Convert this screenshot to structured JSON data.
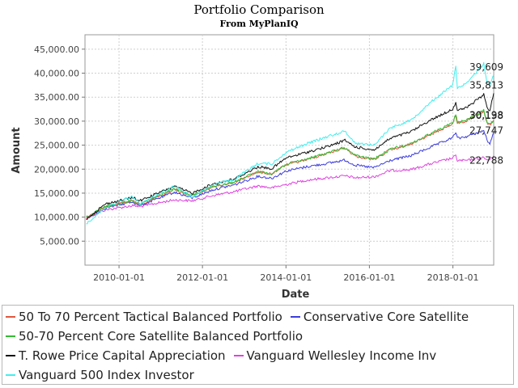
{
  "chart_data": {
    "type": "line",
    "title": "Portfolio Comparison",
    "subtitle": "From MyPlanIQ",
    "xlabel": "Date",
    "ylabel": "Amount",
    "xlim": [
      "2009-03-09",
      "2018-12-24"
    ],
    "ylim": [
      0,
      48000
    ],
    "yticks": [
      5000,
      10000,
      15000,
      20000,
      25000,
      30000,
      35000,
      40000,
      45000
    ],
    "ytick_labels": [
      "5,000.00",
      "10,000.00",
      "15,000.00",
      "20,000.00",
      "25,000.00",
      "30,000.00",
      "35,000.00",
      "40,000.00",
      "45,000.00"
    ],
    "xticks": [
      "2010-01-01",
      "2012-01-01",
      "2014-01-01",
      "2016-01-01",
      "2018-01-01"
    ],
    "xtick_labels": [
      "2010-01-01",
      "2012-01-01",
      "2014-01-01",
      "2016-01-01",
      "2018-01-01"
    ],
    "grid": true,
    "legend_position": "bottom",
    "series": [
      {
        "name": "50 To 70 Percent Tactical Balanced Portfolio",
        "color": "#e0573f",
        "end_label": "30,138",
        "points": [
          [
            "2009-03-20",
            9800
          ],
          [
            "2009-09-01",
            12100
          ],
          [
            "2010-05-01",
            13400
          ],
          [
            "2010-07-01",
            12600
          ],
          [
            "2011-04-29",
            15800
          ],
          [
            "2011-10-03",
            14400
          ],
          [
            "2012-04-01",
            16300
          ],
          [
            "2012-10-01",
            17200
          ],
          [
            "2013-05-01",
            19400
          ],
          [
            "2013-08-30",
            19000
          ],
          [
            "2014-01-01",
            20900
          ],
          [
            "2014-07-01",
            22000
          ],
          [
            "2014-12-31",
            23300
          ],
          [
            "2015-06-01",
            24400
          ],
          [
            "2015-09-01",
            22700
          ],
          [
            "2016-02-11",
            22000
          ],
          [
            "2016-07-01",
            24000
          ],
          [
            "2016-12-30",
            25200
          ],
          [
            "2017-06-01",
            27000
          ],
          [
            "2017-12-29",
            29400
          ],
          [
            "2018-01-26",
            31200
          ],
          [
            "2018-02-09",
            29600
          ],
          [
            "2018-05-01",
            30000
          ],
          [
            "2018-09-28",
            32000
          ],
          [
            "2018-10-26",
            29500
          ],
          [
            "2018-11-20",
            29200
          ],
          [
            "2018-12-24",
            30138
          ]
        ]
      },
      {
        "name": "Conservative Core Satellite",
        "color": "#3c3cdc",
        "end_label": "27,747",
        "points": [
          [
            "2009-03-20",
            9700
          ],
          [
            "2009-09-01",
            11900
          ],
          [
            "2010-05-01",
            13200
          ],
          [
            "2010-07-01",
            12400
          ],
          [
            "2011-04-29",
            15200
          ],
          [
            "2011-10-03",
            14000
          ],
          [
            "2012-04-01",
            15700
          ],
          [
            "2012-10-01",
            16700
          ],
          [
            "2013-05-01",
            18500
          ],
          [
            "2013-08-30",
            18100
          ],
          [
            "2014-01-01",
            19600
          ],
          [
            "2014-07-01",
            20500
          ],
          [
            "2014-12-31",
            21200
          ],
          [
            "2015-06-01",
            21900
          ],
          [
            "2015-09-01",
            20800
          ],
          [
            "2016-02-11",
            20300
          ],
          [
            "2016-07-01",
            21800
          ],
          [
            "2016-12-30",
            22800
          ],
          [
            "2017-06-01",
            24400
          ],
          [
            "2017-12-29",
            26500
          ],
          [
            "2018-01-26",
            27800
          ],
          [
            "2018-02-09",
            26400
          ],
          [
            "2018-05-01",
            26800
          ],
          [
            "2018-09-28",
            28000
          ],
          [
            "2018-10-26",
            26200
          ],
          [
            "2018-11-20",
            25000
          ],
          [
            "2018-12-24",
            27747
          ]
        ]
      },
      {
        "name": "50-70 Percent Core Satellite Balanced Portfolio",
        "color": "#33bb33",
        "end_label": "30,198",
        "points": [
          [
            "2009-03-20",
            9900
          ],
          [
            "2009-09-01",
            12200
          ],
          [
            "2010-05-01",
            13500
          ],
          [
            "2010-07-01",
            12700
          ],
          [
            "2011-04-29",
            15900
          ],
          [
            "2011-10-03",
            14500
          ],
          [
            "2012-04-01",
            16400
          ],
          [
            "2012-10-01",
            17300
          ],
          [
            "2013-05-01",
            19500
          ],
          [
            "2013-08-30",
            19100
          ],
          [
            "2014-01-01",
            21000
          ],
          [
            "2014-07-01",
            22100
          ],
          [
            "2014-12-31",
            23400
          ],
          [
            "2015-06-01",
            24500
          ],
          [
            "2015-09-01",
            22800
          ],
          [
            "2016-02-11",
            22100
          ],
          [
            "2016-07-01",
            24100
          ],
          [
            "2016-12-30",
            25300
          ],
          [
            "2017-06-01",
            27200
          ],
          [
            "2017-12-29",
            29600
          ],
          [
            "2018-01-26",
            31400
          ],
          [
            "2018-02-09",
            29800
          ],
          [
            "2018-05-01",
            30200
          ],
          [
            "2018-09-28",
            32200
          ],
          [
            "2018-10-26",
            29700
          ],
          [
            "2018-11-20",
            29300
          ],
          [
            "2018-12-24",
            30198
          ]
        ]
      },
      {
        "name": "T. Rowe Price Capital Appreciation",
        "color": "#111111",
        "end_label": "35,813",
        "points": [
          [
            "2009-03-20",
            9600
          ],
          [
            "2009-09-01",
            12700
          ],
          [
            "2010-05-01",
            14100
          ],
          [
            "2010-07-01",
            13400
          ],
          [
            "2011-04-29",
            16400
          ],
          [
            "2011-10-03",
            15000
          ],
          [
            "2012-04-01",
            16900
          ],
          [
            "2012-10-01",
            17900
          ],
          [
            "2013-05-01",
            20500
          ],
          [
            "2013-08-30",
            20100
          ],
          [
            "2014-01-01",
            22300
          ],
          [
            "2014-07-01",
            23500
          ],
          [
            "2014-12-31",
            24700
          ],
          [
            "2015-06-01",
            26000
          ],
          [
            "2015-09-01",
            24600
          ],
          [
            "2016-02-11",
            24000
          ],
          [
            "2016-07-01",
            26400
          ],
          [
            "2016-12-30",
            27800
          ],
          [
            "2017-06-01",
            30000
          ],
          [
            "2017-12-29",
            32500
          ],
          [
            "2018-01-26",
            34000
          ],
          [
            "2018-02-09",
            32200
          ],
          [
            "2018-05-01",
            32800
          ],
          [
            "2018-09-28",
            35500
          ],
          [
            "2018-10-26",
            33000
          ],
          [
            "2018-11-20",
            32200
          ],
          [
            "2018-12-24",
            35813
          ]
        ]
      },
      {
        "name": "Vanguard Wellesley Income Inv",
        "color": "#dd44dd",
        "end_label": "22,788",
        "points": [
          [
            "2009-03-20",
            9800
          ],
          [
            "2009-09-01",
            11500
          ],
          [
            "2010-05-01",
            12400
          ],
          [
            "2010-07-01",
            12200
          ],
          [
            "2011-04-29",
            13600
          ],
          [
            "2011-10-03",
            13400
          ],
          [
            "2012-04-01",
            14500
          ],
          [
            "2012-10-01",
            15300
          ],
          [
            "2013-05-01",
            16500
          ],
          [
            "2013-08-30",
            16100
          ],
          [
            "2014-01-01",
            16800
          ],
          [
            "2014-07-01",
            17700
          ],
          [
            "2014-12-31",
            18200
          ],
          [
            "2015-06-01",
            18600
          ],
          [
            "2015-09-01",
            18200
          ],
          [
            "2016-02-11",
            18400
          ],
          [
            "2016-07-01",
            19700
          ],
          [
            "2016-12-30",
            19900
          ],
          [
            "2017-06-01",
            21000
          ],
          [
            "2017-12-29",
            22300
          ],
          [
            "2018-01-26",
            22800
          ],
          [
            "2018-02-09",
            21800
          ],
          [
            "2018-05-01",
            21800
          ],
          [
            "2018-09-28",
            22400
          ],
          [
            "2018-10-26",
            21900
          ],
          [
            "2018-11-20",
            22000
          ],
          [
            "2018-12-24",
            22788
          ]
        ]
      },
      {
        "name": "Vanguard 500 Index Investor",
        "color": "#44eeee",
        "end_label": "39,609",
        "points": [
          [
            "2009-03-20",
            8600
          ],
          [
            "2009-09-01",
            12000
          ],
          [
            "2010-05-01",
            14300
          ],
          [
            "2010-07-01",
            12700
          ],
          [
            "2011-04-29",
            16500
          ],
          [
            "2011-10-03",
            14200
          ],
          [
            "2012-04-01",
            16800
          ],
          [
            "2012-10-01",
            17800
          ],
          [
            "2013-05-01",
            21200
          ],
          [
            "2013-08-30",
            21100
          ],
          [
            "2014-01-01",
            23500
          ],
          [
            "2014-07-01",
            25300
          ],
          [
            "2014-12-31",
            26800
          ],
          [
            "2015-06-01",
            27900
          ],
          [
            "2015-09-01",
            25400
          ],
          [
            "2016-02-11",
            25000
          ],
          [
            "2016-07-01",
            28600
          ],
          [
            "2016-12-30",
            30200
          ],
          [
            "2017-06-01",
            33600
          ],
          [
            "2017-12-29",
            37500
          ],
          [
            "2018-01-26",
            41500
          ],
          [
            "2018-02-09",
            37000
          ],
          [
            "2018-05-01",
            37800
          ],
          [
            "2018-09-28",
            42000
          ],
          [
            "2018-10-26",
            38200
          ],
          [
            "2018-11-20",
            37500
          ],
          [
            "2018-12-24",
            39609
          ]
        ]
      }
    ]
  }
}
